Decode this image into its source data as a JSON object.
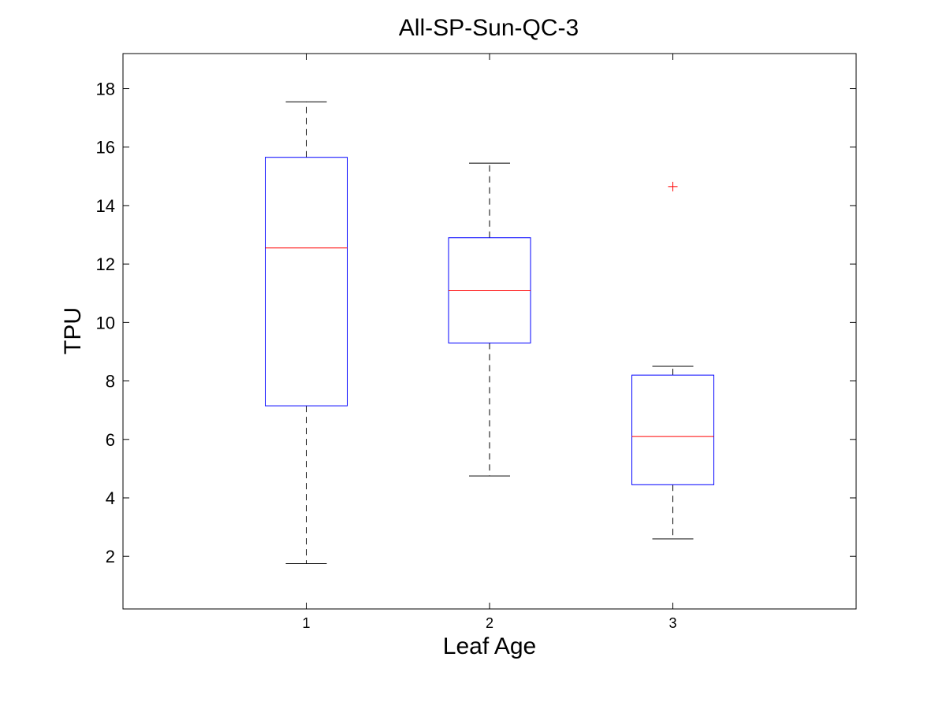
{
  "chart_data": {
    "type": "box",
    "title": "All-SP-Sun-QC-3",
    "xlabel": "Leaf Age",
    "ylabel": "TPU",
    "ylim": [
      0.2,
      19.2
    ],
    "yticks": [
      2,
      4,
      6,
      8,
      10,
      12,
      14,
      16,
      18
    ],
    "grid": false,
    "categories": [
      "1",
      "2",
      "3"
    ],
    "boxes": [
      {
        "category": "1",
        "whisker_low": 1.75,
        "q1": 7.15,
        "median": 12.55,
        "q3": 15.65,
        "whisker_high": 17.55,
        "outliers": []
      },
      {
        "category": "2",
        "whisker_low": 4.75,
        "q1": 9.3,
        "median": 11.1,
        "q3": 12.9,
        "whisker_high": 15.45,
        "outliers": []
      },
      {
        "category": "3",
        "whisker_low": 2.6,
        "q1": 4.45,
        "median": 6.1,
        "q3": 8.2,
        "whisker_high": 8.5,
        "outliers": [
          14.65
        ]
      }
    ],
    "colors": {
      "box": "#0000ff",
      "median": "#ff0000",
      "whisker": "#000000",
      "outlier": "#ff0000",
      "axes": "#000000"
    }
  }
}
